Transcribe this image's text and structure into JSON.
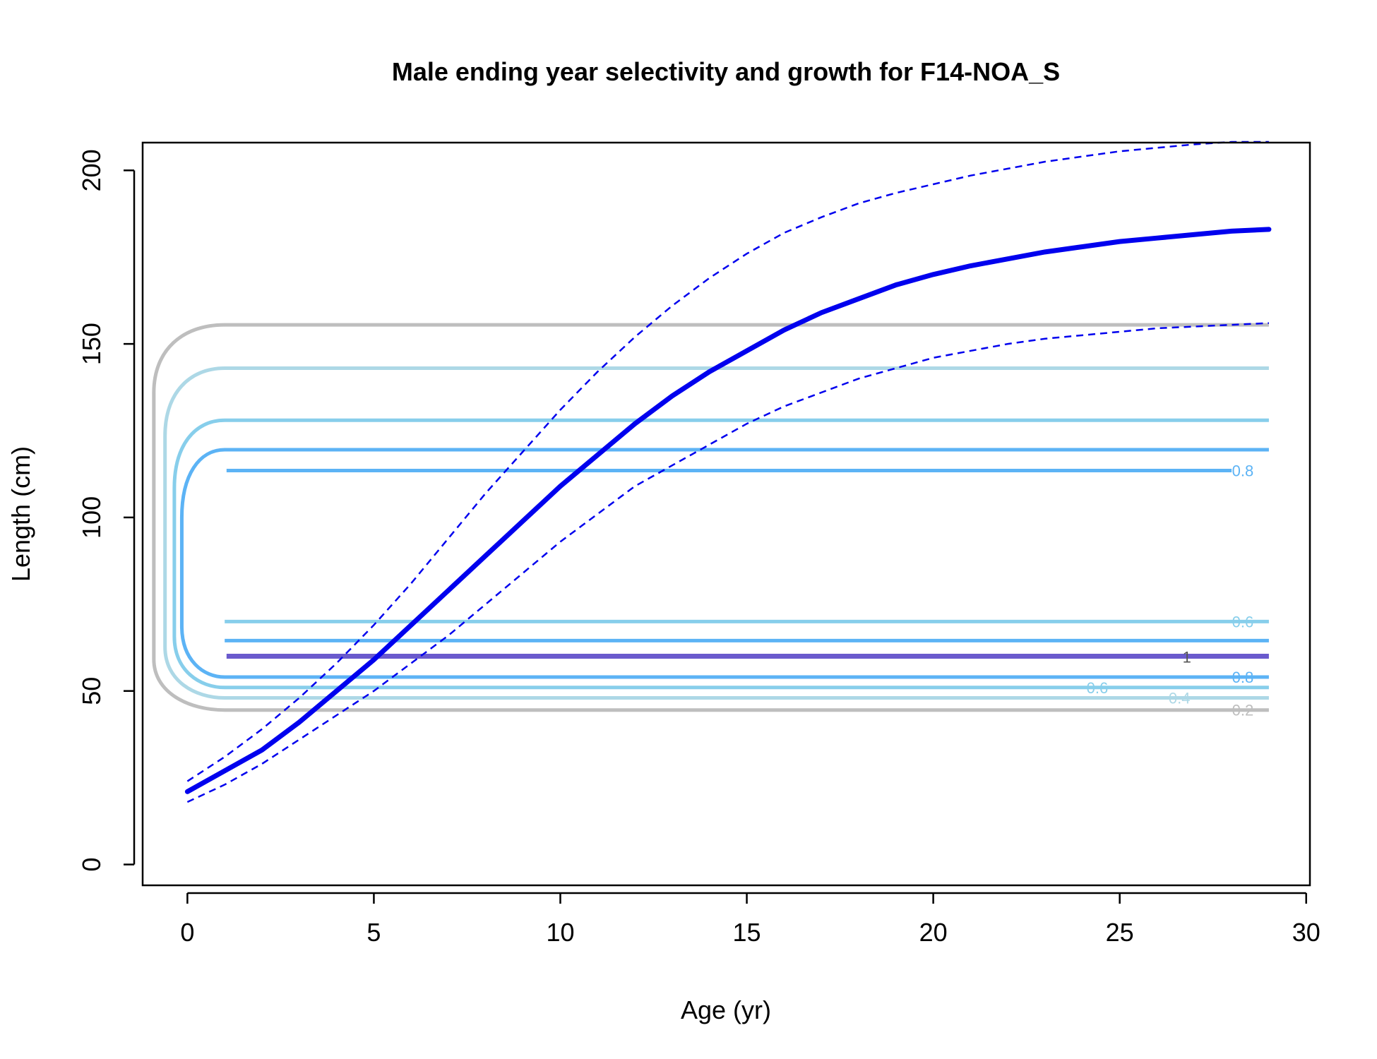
{
  "chart_data": {
    "type": "line",
    "title": "Male ending year selectivity and growth for F14-NOA_S",
    "xlabel": "Age (yr)",
    "ylabel": "Length (cm)",
    "xlim": [
      -1.2,
      30.1
    ],
    "ylim": [
      -6,
      208
    ],
    "xticks": [
      0,
      5,
      10,
      15,
      20,
      25,
      30
    ],
    "yticks": [
      0,
      50,
      100,
      150,
      200
    ],
    "grid": false,
    "legend": "none",
    "growth": {
      "color": "#0000ee",
      "ages": [
        0,
        1,
        2,
        3,
        4,
        5,
        6,
        7,
        8,
        9,
        10,
        11,
        12,
        13,
        14,
        15,
        16,
        17,
        18,
        19,
        20,
        21,
        22,
        23,
        24,
        25,
        26,
        27,
        28,
        29
      ],
      "mean": [
        21,
        27,
        33,
        41,
        50,
        59,
        69,
        79,
        89,
        99,
        109,
        118,
        127,
        135,
        142,
        148,
        154,
        159,
        163,
        167,
        170,
        172.5,
        174.5,
        176.5,
        178,
        179.5,
        180.5,
        181.5,
        182.5,
        183
      ],
      "upper": [
        24,
        31,
        39,
        48,
        58,
        69,
        81,
        94,
        107,
        119,
        131,
        142,
        152,
        161,
        169,
        176,
        182,
        186.5,
        190.5,
        193.5,
        196,
        198.5,
        200.5,
        202.5,
        204,
        205.5,
        206.5,
        207.5,
        208.5,
        209
      ],
      "lower": [
        18,
        23,
        29,
        36,
        43,
        50,
        58,
        66,
        75,
        84,
        93,
        101,
        109,
        115,
        121,
        127,
        132,
        136,
        140,
        143,
        146,
        148,
        150,
        151.5,
        152.5,
        153.5,
        154.5,
        155,
        155.5,
        156
      ]
    },
    "contours": [
      {
        "level": "0.2",
        "color": "#bebebe",
        "lower": 44.5,
        "upper": 155.5,
        "label_lower": "0.2"
      },
      {
        "level": "0.4",
        "color": "#add8e6",
        "lower": 48,
        "upper": 143,
        "label_lower": "0.4"
      },
      {
        "level": "0.6",
        "color": "#87ceeb",
        "lower": 51,
        "upper": 128,
        "label_lower": "0.6",
        "label_upper": "0.6"
      },
      {
        "level": "0.8",
        "color": "#5cb3f5",
        "lower": 54,
        "upper": 119.5,
        "label_lower": "0.8",
        "label_upper": "0.8"
      },
      {
        "level": "1",
        "color": "#6a5acd",
        "value": 60,
        "label": "1"
      }
    ]
  }
}
